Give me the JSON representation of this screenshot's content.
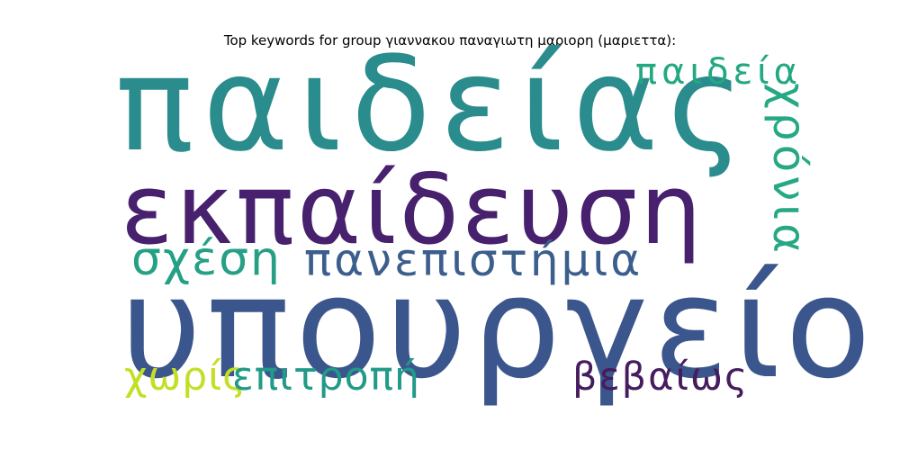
{
  "title": "Top keywords for group γιαννακου παναγιωτη μαριορη (μαριεττα):",
  "words": {
    "paideias": {
      "text": "παιδείας",
      "color": "#2a8c8c"
    },
    "ekpaideusi": {
      "text": "εκπαίδευση",
      "color": "#47206e"
    },
    "ypourgeio": {
      "text": "υπουργείο",
      "color": "#3b568c"
    },
    "paideia": {
      "text": "παιδεία",
      "color": "#23a882"
    },
    "chronia": {
      "text": "χρόνια",
      "color": "#26a884"
    },
    "schesi": {
      "text": "σχέση",
      "color": "#25a084"
    },
    "panepistimia": {
      "text": "πανεπιστήμια",
      "color": "#3b5e8c"
    },
    "choris": {
      "text": "χωρίς",
      "color": "#c3df25"
    },
    "epitropi": {
      "text": "επιτροπή",
      "color": "#219a88"
    },
    "vevaios": {
      "text": "βεβαίως",
      "color": "#461c5e"
    }
  }
}
